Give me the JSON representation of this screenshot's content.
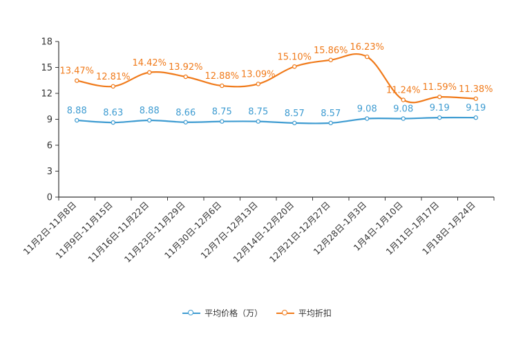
{
  "chart_data": {
    "type": "line",
    "title": "",
    "xlabel": "",
    "ylabel": "",
    "ylim": [
      0,
      18
    ],
    "yticks": [
      0,
      3,
      6,
      9,
      12,
      15,
      18
    ],
    "categories": [
      "11月2日-11月8日",
      "11月9日-11月15日",
      "11月16日-11月22日",
      "11月23日-11月29日",
      "11月30日-12月6日",
      "12月7日-12月13日",
      "12月14日-12月20日",
      "12月21日-12月27日",
      "12月28日-1月3日",
      "1月4日-1月10日",
      "1月11日-1月17日",
      "1月18日-1月24日"
    ],
    "series": [
      {
        "name": "平均价格（万）",
        "color": "#3d9bd1",
        "values": [
          8.88,
          8.63,
          8.88,
          8.66,
          8.75,
          8.75,
          8.57,
          8.57,
          9.08,
          9.08,
          9.19,
          9.19
        ],
        "labels": [
          "8.88",
          "8.63",
          "8.88",
          "8.66",
          "8.75",
          "8.75",
          "8.57",
          "8.57",
          "9.08",
          "9.08",
          "9.19",
          "9.19"
        ]
      },
      {
        "name": "平均折扣",
        "color": "#f07a1a",
        "values": [
          13.47,
          12.81,
          14.42,
          13.92,
          12.88,
          13.09,
          15.1,
          15.86,
          16.23,
          11.24,
          11.59,
          11.38
        ],
        "labels": [
          "13.47%",
          "12.81%",
          "14.42%",
          "13.92%",
          "12.88%",
          "13.09%",
          "15.10%",
          "15.86%",
          "16.23%",
          "11.24%",
          "11.59%",
          "11.38%"
        ]
      }
    ],
    "legend_position": "bottom",
    "grid": false
  }
}
